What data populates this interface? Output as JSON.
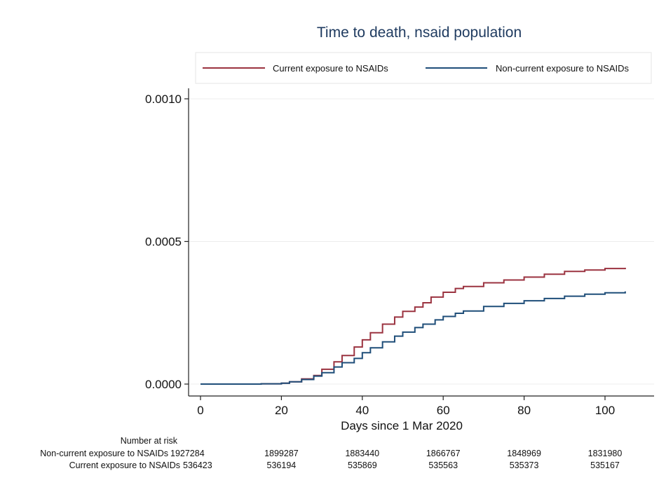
{
  "chart_data": {
    "type": "line",
    "title": "Time to death, nsaid population",
    "xlabel": "Days since 1 Mar 2020",
    "ylabel": "",
    "xlim": [
      0,
      105
    ],
    "ylim": [
      0,
      0.001
    ],
    "x_ticks": [
      0,
      20,
      40,
      60,
      80,
      100
    ],
    "y_ticks": [
      0.0,
      0.0005,
      0.001
    ],
    "x_tick_labels": [
      "0",
      "20",
      "40",
      "60",
      "80",
      "100"
    ],
    "y_tick_labels": [
      "0.0000",
      "0.0005",
      "0.0010"
    ],
    "grid": true,
    "legend_position": "top",
    "series": [
      {
        "name": "Current exposure to NSAIDs",
        "color": "#9b3340",
        "x": [
          0,
          10,
          15,
          20,
          22,
          25,
          28,
          30,
          33,
          35,
          38,
          40,
          42,
          45,
          48,
          50,
          53,
          55,
          57,
          60,
          63,
          65,
          70,
          75,
          80,
          85,
          90,
          95,
          100,
          105
        ],
        "y": [
          0,
          0,
          1e-06,
          3e-06,
          8e-06,
          1.8e-05,
          3e-05,
          5.2e-05,
          7.8e-05,
          0.0001,
          0.00013,
          0.000155,
          0.00018,
          0.00021,
          0.000235,
          0.000255,
          0.00027,
          0.000285,
          0.000305,
          0.000322,
          0.000335,
          0.000342,
          0.000355,
          0.000365,
          0.000375,
          0.000385,
          0.000395,
          0.0004,
          0.000405,
          0.000408
        ]
      },
      {
        "name": "Non-current exposure to NSAIDs",
        "color": "#1f4e79",
        "x": [
          0,
          10,
          15,
          20,
          22,
          25,
          28,
          30,
          33,
          35,
          38,
          40,
          42,
          45,
          48,
          50,
          53,
          55,
          58,
          60,
          63,
          65,
          70,
          75,
          80,
          85,
          90,
          95,
          100,
          105
        ],
        "y": [
          0,
          0,
          1e-06,
          3e-06,
          8e-06,
          1.6e-05,
          2.8e-05,
          4e-05,
          6e-05,
          7.5e-05,
          9e-05,
          0.00011,
          0.000127,
          0.000148,
          0.000168,
          0.000182,
          0.000198,
          0.00021,
          0.000225,
          0.000237,
          0.000248,
          0.000256,
          0.000272,
          0.000283,
          0.000292,
          0.0003,
          0.000308,
          0.000315,
          0.00032,
          0.000325
        ]
      }
    ],
    "risk_table": {
      "header": "Number at risk",
      "x_positions": [
        0,
        20,
        40,
        60,
        80,
        100
      ],
      "rows": [
        {
          "label": "Non-current exposure to NSAIDs",
          "values": [
            "1927284",
            "1899287",
            "1883440",
            "1866767",
            "1848969",
            "1831980"
          ]
        },
        {
          "label": "Current exposure to NSAIDs",
          "values": [
            "536423",
            "536194",
            "535869",
            "535563",
            "535373",
            "535167"
          ]
        }
      ]
    }
  }
}
